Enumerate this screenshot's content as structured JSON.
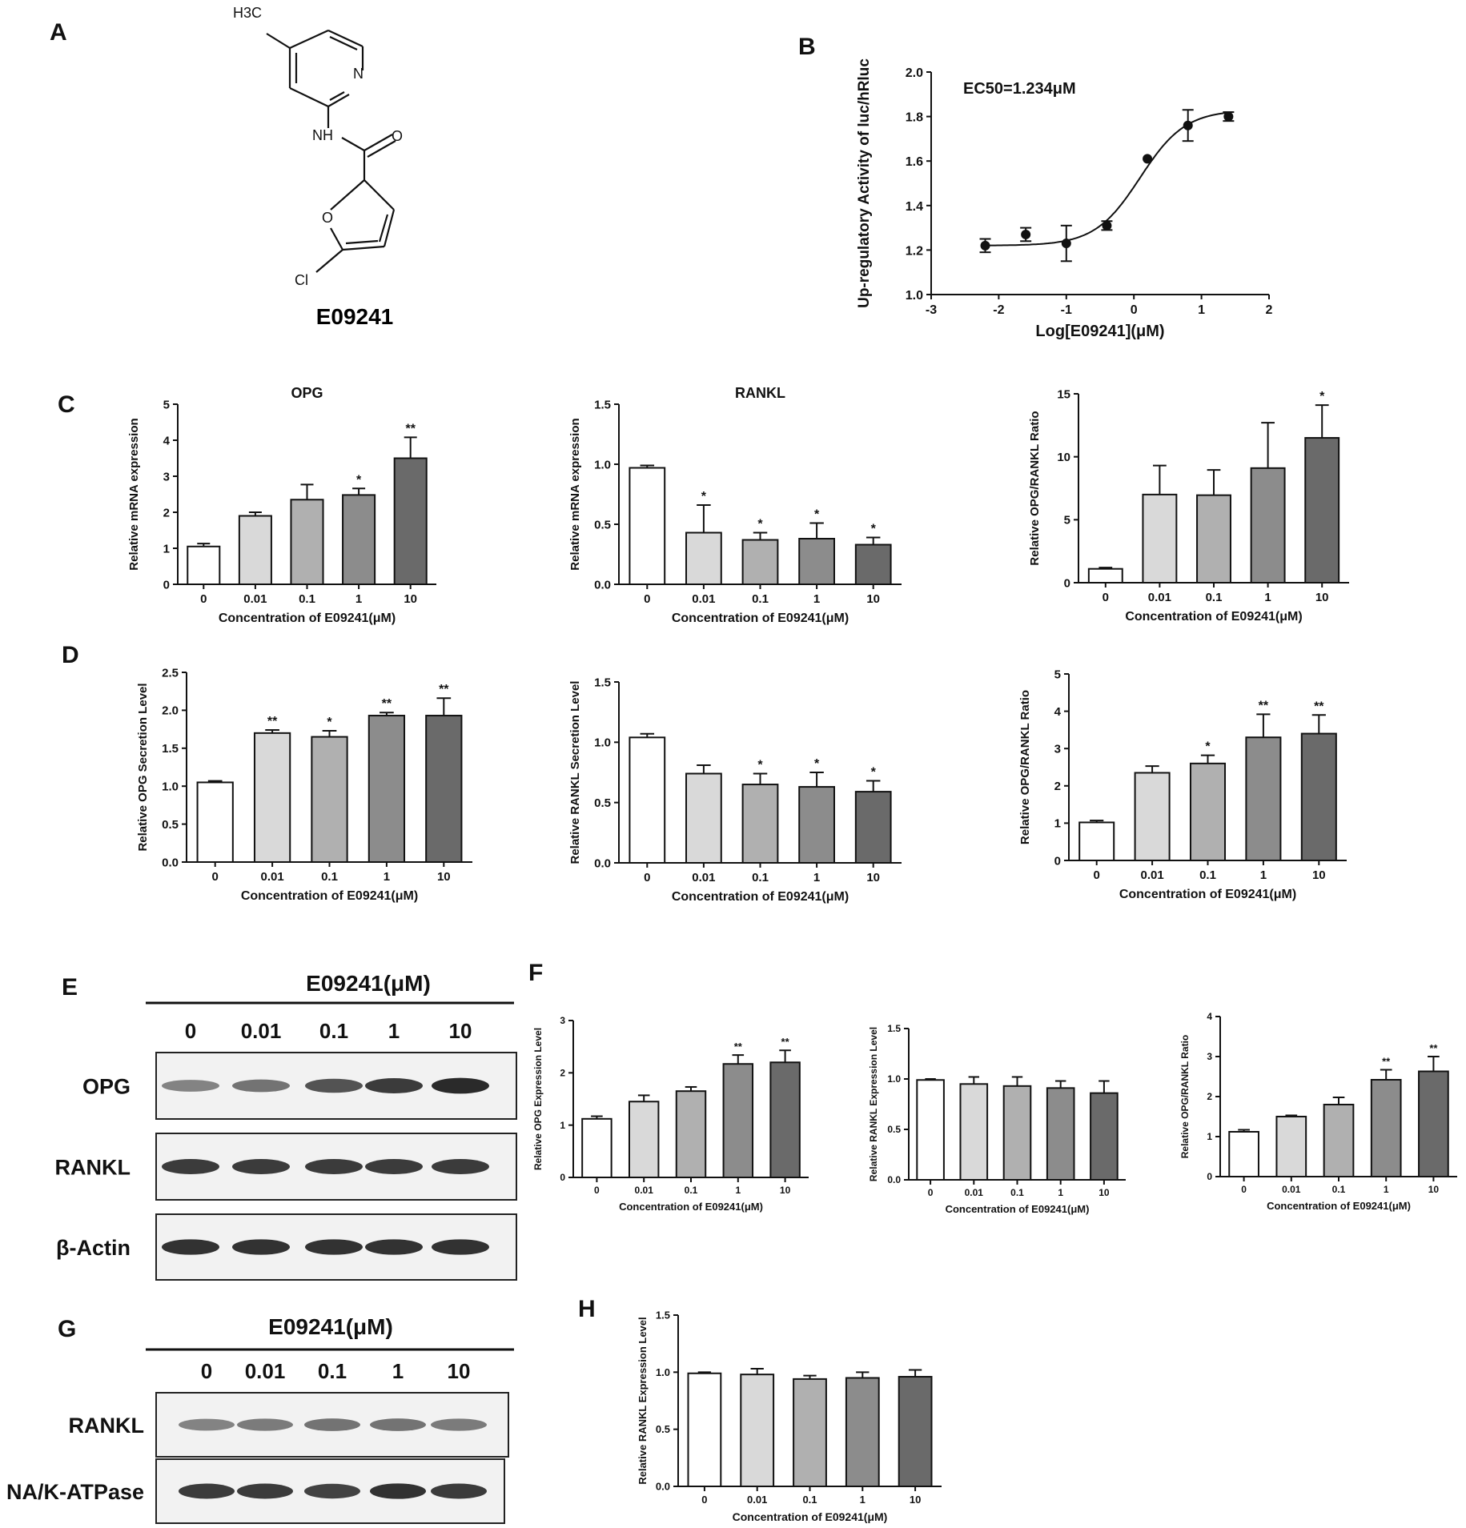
{
  "panel_labels": {
    "A": "A",
    "B": "B",
    "C": "C",
    "D": "D",
    "E": "E",
    "F": "F",
    "G": "G",
    "H": "H"
  },
  "colors": [
    "#ffffff",
    "#d9d9d9",
    "#b0b0b0",
    "#8c8c8c",
    "#6a6a6a"
  ],
  "molecule": {
    "name": "E09241",
    "atoms": {
      "methyl": "H3C",
      "nitrogen": "N",
      "amide_nh": "NH",
      "oxygen_carbonyl": "O",
      "oxygen_ring": "O",
      "chlorine": "Cl"
    }
  },
  "blots": {
    "E": {
      "header": "E09241(μM)",
      "lanes": [
        "0",
        "0.01",
        "0.1",
        "1",
        "10"
      ],
      "rows": [
        {
          "label": "OPG",
          "intensity": [
            0.45,
            0.55,
            0.75,
            0.9,
            1.0
          ]
        },
        {
          "label": "RANKL",
          "intensity": [
            0.9,
            0.9,
            0.9,
            0.9,
            0.9
          ]
        },
        {
          "label": "β-Actin",
          "intensity": [
            0.95,
            0.95,
            0.95,
            0.95,
            0.95
          ]
        }
      ]
    },
    "G": {
      "header": "E09241(μM)",
      "lanes": [
        "0",
        "0.01",
        "0.1",
        "1",
        "10"
      ],
      "rows": [
        {
          "label": "RANKL",
          "intensity": [
            0.45,
            0.5,
            0.55,
            0.55,
            0.5
          ]
        },
        {
          "label": "NA/K-ATPase",
          "intensity": [
            0.9,
            0.9,
            0.85,
            0.95,
            0.9
          ]
        }
      ]
    }
  },
  "chart_data": [
    {
      "id": "B",
      "type": "scatter",
      "annotation": "EC50=1.234μM",
      "xlabel": "Log[E09241](μM)",
      "ylabel": "Up-regulatory Activity of luc/hRluc",
      "xlim": [
        -3,
        2
      ],
      "ylim": [
        1.0,
        2.0
      ],
      "xticks": [
        "-3",
        "-2",
        "-1",
        "0",
        "1",
        "2"
      ],
      "yticks": [
        "1.0",
        "1.2",
        "1.4",
        "1.6",
        "1.8",
        "2.0"
      ],
      "x": [
        -2.2,
        -1.6,
        -1.0,
        -0.4,
        0.2,
        0.8,
        1.4
      ],
      "y": [
        1.22,
        1.27,
        1.23,
        1.31,
        1.61,
        1.76,
        1.8
      ],
      "err": [
        0.03,
        0.03,
        0.08,
        0.02,
        0.0,
        0.07,
        0.02
      ],
      "fit": {
        "bottom": 1.22,
        "top": 1.83,
        "logEC50": 0.0914,
        "hill": 1.3
      }
    },
    {
      "id": "C1",
      "type": "bar",
      "title": "OPG",
      "categories": [
        "0",
        "0.01",
        "0.1",
        "1",
        "10"
      ],
      "values": [
        1.05,
        1.9,
        2.35,
        2.48,
        3.5
      ],
      "err": [
        0.08,
        0.1,
        0.42,
        0.18,
        0.58
      ],
      "stars": [
        "",
        "",
        "",
        "*",
        "**"
      ],
      "ylim": [
        0,
        5
      ],
      "yticks": [
        "0",
        "1",
        "2",
        "3",
        "4",
        "5"
      ],
      "ylabel": "Relative mRNA expression",
      "xlabel": "Concentration of E09241(μM)"
    },
    {
      "id": "C2",
      "type": "bar",
      "title": "RANKL",
      "categories": [
        "0",
        "0.01",
        "0.1",
        "1",
        "10"
      ],
      "values": [
        0.97,
        0.43,
        0.37,
        0.38,
        0.33
      ],
      "err": [
        0.02,
        0.23,
        0.06,
        0.13,
        0.06
      ],
      "stars": [
        "",
        "*",
        "*",
        "*",
        "*"
      ],
      "ylim": [
        0,
        1.5
      ],
      "yticks": [
        "0.0",
        "0.5",
        "1.0",
        "1.5"
      ],
      "ylabel": "Relative mRNA expression",
      "xlabel": "Concentration of E09241(μM)"
    },
    {
      "id": "C3",
      "type": "bar",
      "title": "",
      "categories": [
        "0",
        "0.01",
        "0.1",
        "1",
        "10"
      ],
      "values": [
        1.1,
        7.0,
        6.95,
        9.1,
        11.5
      ],
      "err": [
        0.1,
        2.3,
        2.0,
        3.6,
        2.6
      ],
      "stars": [
        "",
        "",
        "",
        "",
        "*"
      ],
      "ylim": [
        0,
        15
      ],
      "yticks": [
        "0",
        "5",
        "10",
        "15"
      ],
      "ylabel": "Relative OPG/RANKL Ratio",
      "xlabel": "Concentration of E09241(μM)"
    },
    {
      "id": "D1",
      "type": "bar",
      "title": "",
      "categories": [
        "0",
        "0.01",
        "0.1",
        "1",
        "10"
      ],
      "values": [
        1.05,
        1.7,
        1.65,
        1.93,
        1.93
      ],
      "err": [
        0.02,
        0.04,
        0.08,
        0.04,
        0.23
      ],
      "stars": [
        "",
        "**",
        "*",
        "**",
        "**"
      ],
      "ylim": [
        0,
        2.5
      ],
      "yticks": [
        "0.0",
        "0.5",
        "1.0",
        "1.5",
        "2.0",
        "2.5"
      ],
      "ylabel": "Relative OPG Secretion Level",
      "xlabel": "Concentration of E09241(μM)"
    },
    {
      "id": "D2",
      "type": "bar",
      "title": "",
      "categories": [
        "0",
        "0.01",
        "0.1",
        "1",
        "10"
      ],
      "values": [
        1.04,
        0.74,
        0.65,
        0.63,
        0.59
      ],
      "err": [
        0.03,
        0.07,
        0.09,
        0.12,
        0.09
      ],
      "stars": [
        "",
        "",
        "*",
        "*",
        "*"
      ],
      "ylim": [
        0,
        1.5
      ],
      "yticks": [
        "0.0",
        "0.5",
        "1.0",
        "1.5"
      ],
      "ylabel": "Relative RANKL Secretion Level",
      "xlabel": "Concentration of E09241(μM)"
    },
    {
      "id": "D3",
      "type": "bar",
      "title": "",
      "categories": [
        "0",
        "0.01",
        "0.1",
        "1",
        "10"
      ],
      "values": [
        1.02,
        2.35,
        2.6,
        3.3,
        3.4
      ],
      "err": [
        0.05,
        0.18,
        0.22,
        0.62,
        0.5
      ],
      "stars": [
        "",
        "",
        "*",
        "**",
        "**"
      ],
      "ylim": [
        0,
        5
      ],
      "yticks": [
        "0",
        "1",
        "2",
        "3",
        "4",
        "5"
      ],
      "ylabel": "Relative OPG/RANKL Ratio",
      "xlabel": "Concentration of E09241(μM)"
    },
    {
      "id": "F1",
      "type": "bar",
      "title": "",
      "categories": [
        "0",
        "0.01",
        "0.1",
        "1",
        "10"
      ],
      "values": [
        1.12,
        1.45,
        1.65,
        2.17,
        2.2
      ],
      "err": [
        0.05,
        0.12,
        0.08,
        0.17,
        0.23
      ],
      "stars": [
        "",
        "",
        "",
        "**",
        "**"
      ],
      "ylim": [
        0,
        3
      ],
      "yticks": [
        "0",
        "1",
        "2",
        "3"
      ],
      "ylabel": "Relative OPG Expression Level",
      "xlabel": "Concentration of E09241(μM)"
    },
    {
      "id": "F2",
      "type": "bar",
      "title": "",
      "categories": [
        "0",
        "0.01",
        "0.1",
        "1",
        "10"
      ],
      "values": [
        0.99,
        0.95,
        0.93,
        0.91,
        0.86
      ],
      "err": [
        0.01,
        0.07,
        0.09,
        0.07,
        0.12
      ],
      "stars": [
        "",
        "",
        "",
        "",
        ""
      ],
      "ylim": [
        0,
        1.5
      ],
      "yticks": [
        "0.0",
        "0.5",
        "1.0",
        "1.5"
      ],
      "ylabel": "Relative RANKL Expression Level",
      "xlabel": "Concentration of E09241(μM)"
    },
    {
      "id": "F3",
      "type": "bar",
      "title": "",
      "categories": [
        "0",
        "0.01",
        "0.1",
        "1",
        "10"
      ],
      "values": [
        1.12,
        1.5,
        1.8,
        2.42,
        2.63
      ],
      "err": [
        0.05,
        0.03,
        0.18,
        0.25,
        0.37
      ],
      "stars": [
        "",
        "",
        "",
        "**",
        "**"
      ],
      "ylim": [
        0,
        4
      ],
      "yticks": [
        "0",
        "1",
        "2",
        "3",
        "4"
      ],
      "ylabel": "Relative OPG/RANKL Ratio",
      "xlabel": "Concentration of E09241(μM)"
    },
    {
      "id": "H",
      "type": "bar",
      "title": "",
      "categories": [
        "0",
        "0.01",
        "0.1",
        "1",
        "10"
      ],
      "values": [
        0.99,
        0.98,
        0.94,
        0.95,
        0.96
      ],
      "err": [
        0.01,
        0.05,
        0.03,
        0.05,
        0.06
      ],
      "stars": [
        "",
        "",
        "",
        "",
        ""
      ],
      "ylim": [
        0,
        1.5
      ],
      "yticks": [
        "0.0",
        "0.5",
        "1.0",
        "1.5"
      ],
      "ylabel": "Relative RANKL Expression Level",
      "xlabel": "Concentration of E09241(μM)"
    }
  ]
}
